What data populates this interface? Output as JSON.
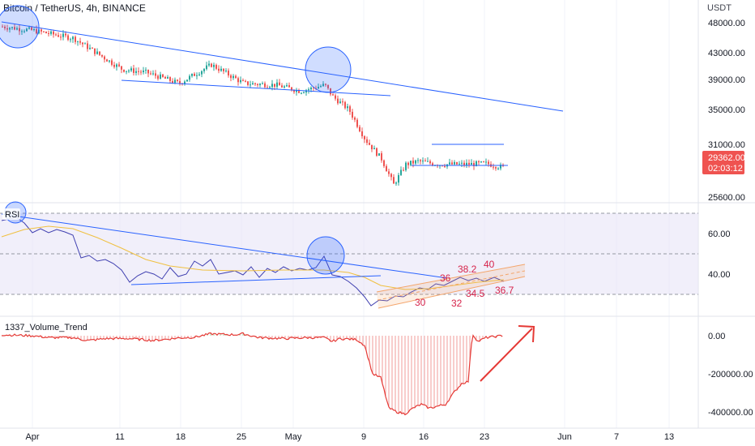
{
  "header": {
    "symbol_title": "Bitcoin / TetherUS, 4h, BINANCE",
    "currency": "USDT"
  },
  "chart_data": {
    "type": "candlestick",
    "price_panel": {
      "y_ticks": [
        "48000.00",
        "43000.00",
        "39000.00",
        "35000.00",
        "31000.00",
        "25600.00"
      ],
      "last_price": "29362.00",
      "countdown": "02:03:12",
      "colors": {
        "up": "#26a69a",
        "down": "#ef5350",
        "trendline": "#2962ff",
        "label_bg": "#ef5350"
      },
      "drawings": [
        "descending trendline",
        "wedge support line",
        "range box top",
        "range box bottom",
        "circle highlight",
        "circle highlight"
      ]
    },
    "rsi_panel": {
      "label": "RSI",
      "y_ticks": [
        "60.00",
        "40.00"
      ],
      "annotations": [
        "30",
        "32",
        "34.5",
        "36",
        "36.7",
        "38.2",
        "40"
      ],
      "colors": {
        "rsi": "#3f3fb0",
        "ma": "#f0c040",
        "band": "#e8e4f7",
        "channel": "#f4a56b",
        "annotation": "#d6234a"
      }
    },
    "volume_panel": {
      "label": "1337_Volume_Trend",
      "y_ticks": [
        "0.00",
        "-200000.00",
        "-400000.00"
      ],
      "colors": {
        "positive": "#4caf50",
        "negative": "#e53935",
        "arrow": "#e53935"
      }
    },
    "x_ticks": [
      "Apr",
      "11",
      "18",
      "25",
      "May",
      "9",
      "16",
      "23",
      "Jun",
      "7",
      "13"
    ]
  }
}
